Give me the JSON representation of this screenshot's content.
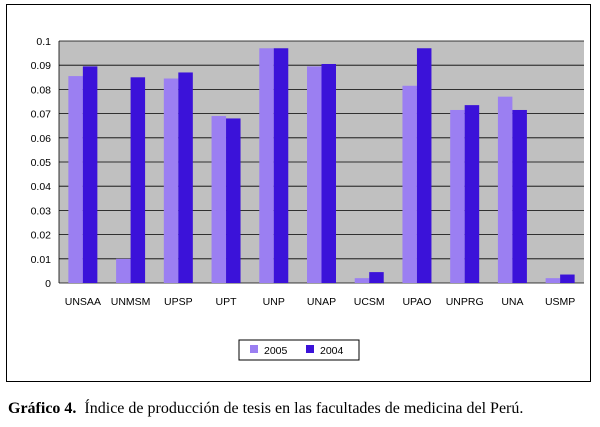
{
  "chart_data": {
    "type": "bar",
    "categories": [
      "UNSAA",
      "UNMSM",
      "UPSP",
      "UPT",
      "UNP",
      "UNAP",
      "UCSM",
      "UPAO",
      "UNPRG",
      "UNA",
      "USMP"
    ],
    "series": [
      {
        "name": "2005",
        "color": "#9b7ff2",
        "values": [
          0.0855,
          0.01,
          0.0845,
          0.069,
          0.097,
          0.0895,
          0.002,
          0.0815,
          0.0715,
          0.077,
          0.002
        ]
      },
      {
        "name": "2004",
        "color": "#3b12d9",
        "values": [
          0.0895,
          0.085,
          0.087,
          0.068,
          0.097,
          0.0905,
          0.0045,
          0.097,
          0.0735,
          0.0715,
          0.0035
        ]
      }
    ],
    "ylim": [
      0,
      0.1
    ],
    "yticks": [
      "0",
      "0.01",
      "0.02",
      "0.03",
      "0.04",
      "0.05",
      "0.06",
      "0.07",
      "0.08",
      "0.09",
      "0.1"
    ],
    "grid": true,
    "legend": "bottom-center",
    "plot_background": "#c0c0c0"
  },
  "caption": {
    "label": "Gráfico 4.",
    "text": "Índice de producción de tesis en las facultades de medicina del Perú."
  }
}
